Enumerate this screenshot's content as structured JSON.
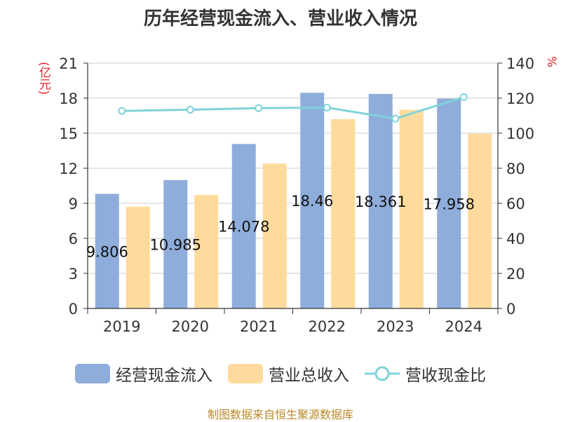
{
  "title": "历年经营现金流入、营业收入情况",
  "units": {
    "left": "(亿元)",
    "right": "%"
  },
  "source": "制图数据来自恒生聚源数据库",
  "colors": {
    "cash_inflow": "#8eaddb",
    "revenue": "#fedb9c",
    "ratio": "#7fd3d8",
    "axis": "#333333",
    "grid": "#cccccc",
    "unit": "#e0242b"
  },
  "chart_data": {
    "type": "bar",
    "title": "历年经营现金流入、营业收入情况",
    "categories": [
      "2019",
      "2020",
      "2021",
      "2022",
      "2023",
      "2024"
    ],
    "series": [
      {
        "name": "经营现金流入",
        "type": "bar",
        "axis": "left",
        "values": [
          9.806,
          10.985,
          14.078,
          18.46,
          18.361,
          17.958
        ],
        "labels": [
          "9.806",
          "10.985",
          "14.078",
          "18.46",
          "18.361",
          "17.958"
        ]
      },
      {
        "name": "营业总收入",
        "type": "bar",
        "axis": "left",
        "values": [
          8.7,
          9.7,
          12.4,
          16.2,
          17.0,
          14.95
        ]
      },
      {
        "name": "营收现金比",
        "type": "line",
        "axis": "right",
        "values": [
          112.7,
          113.4,
          114.3,
          114.6,
          108.3,
          120.6
        ]
      }
    ],
    "ylim_left": [
      0,
      21
    ],
    "yticks_left": [
      "0",
      "3",
      "6",
      "9",
      "12",
      "15",
      "18",
      "21"
    ],
    "ylim_right": [
      0,
      140
    ],
    "yticks_right": [
      "0",
      "20",
      "40",
      "60",
      "80",
      "100",
      "120",
      "140"
    ],
    "ylabel_left": "(亿元)",
    "ylabel_right": "%",
    "grid": true,
    "legend_position": "bottom"
  }
}
